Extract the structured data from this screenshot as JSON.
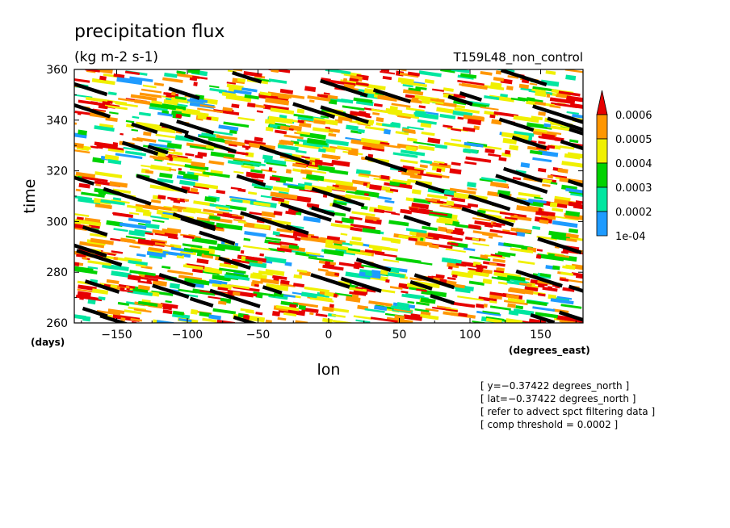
{
  "chart_data": {
    "type": "heatmap",
    "title": "precipitation flux",
    "subtitle": "(kg m-2 s-1)",
    "run_label": "T159L48_non_control",
    "xlabel": "lon",
    "ylabel": "time",
    "x_units": "(degrees_east)",
    "y_units": "(days)",
    "xlim": [
      -180,
      180
    ],
    "ylim": [
      260,
      360
    ],
    "x_ticks": [
      -150,
      -100,
      -50,
      0,
      50,
      100,
      150
    ],
    "y_ticks": [
      260,
      280,
      300,
      320,
      340,
      360
    ],
    "x_tick_labels": [
      "−150",
      "−100",
      "−50",
      "0",
      "50",
      "100",
      "150"
    ],
    "y_tick_labels": [
      "260",
      "280",
      "300",
      "320",
      "340",
      "360"
    ],
    "colorbar": {
      "levels": [
        0.0001,
        0.0002,
        0.0003,
        0.0004,
        0.0005,
        0.0006
      ],
      "labels": [
        "1e-04",
        "0.0002",
        "0.0003",
        "0.0004",
        "0.0005",
        "0.0006"
      ],
      "colors": [
        "#1e9bff",
        "#00e6a0",
        "#00d200",
        "#f0f000",
        "#ff9600",
        "#e60000"
      ]
    },
    "composite_line_color": "#000000",
    "annotations": [
      "[ y=−0.37422 degrees_north ]",
      "[ lat=−0.37422 degrees_north ]",
      "[ refer to advect spct filtering data ]",
      "[ comp threshold = 0.0002 ]"
    ]
  }
}
